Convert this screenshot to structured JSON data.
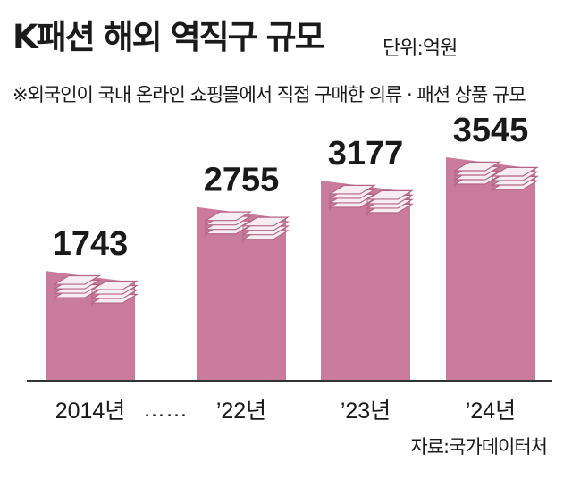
{
  "header": {
    "title": "K패션 해외 역직구 규모",
    "unit": "단위:억원",
    "note": "※외국인이 국내 온라인 쇼핑몰에서 직접 구매한 의류 · 패션 상품 규모"
  },
  "source": "자료:국가데이터처",
  "colors": {
    "bar": "#c97b9b",
    "bar_top": "#e7b4c7",
    "paper": "#f7ecf1",
    "paper_edge": "#b36585",
    "baseline": "#333333"
  },
  "chart_data": {
    "type": "bar",
    "categories": [
      "2014년",
      "’22년",
      "’23년",
      "’24년"
    ],
    "values": [
      1743,
      2755,
      3177,
      3545
    ],
    "gap_label": "……",
    "title": "K패션 해외 역직구 규모",
    "xlabel": "",
    "ylabel": "",
    "ylim": [
      0,
      3545
    ],
    "grid": false,
    "legend": "none"
  }
}
